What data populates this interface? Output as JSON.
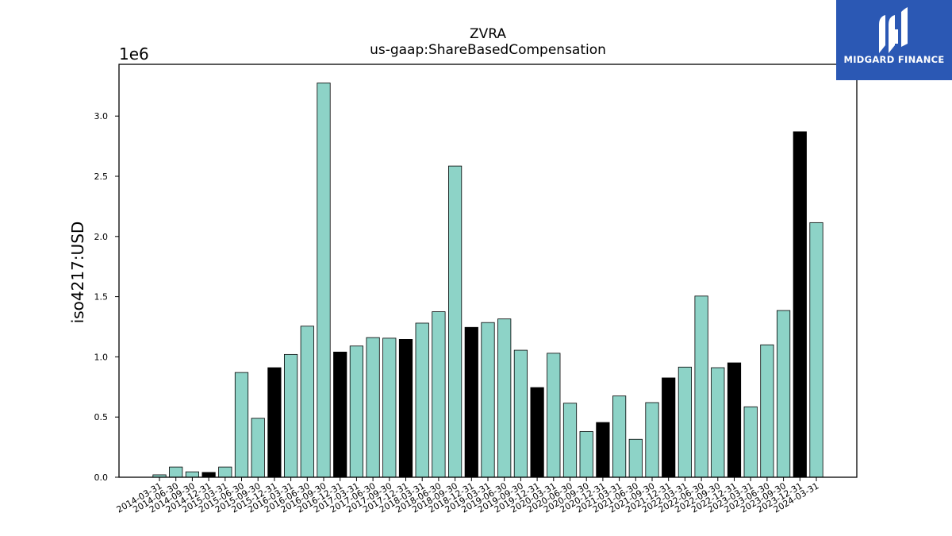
{
  "chart_data": {
    "type": "bar",
    "title": "ZVRA",
    "subtitle": "us-gaap:ShareBasedCompensation",
    "ylabel": "iso4217:USD",
    "xlabel": "",
    "y_offset_label": "1e6",
    "ylim": [
      0,
      3430000
    ],
    "yticks": [
      0.0,
      0.5,
      1.0,
      1.5,
      2.0,
      2.5,
      3.0
    ],
    "ytick_labels": [
      "0.0",
      "0.5",
      "1.0",
      "1.5",
      "2.0",
      "2.5",
      "3.0"
    ],
    "grid": false,
    "colors": {
      "default": "#8dd3c7",
      "highlight": "#000000",
      "edge": "#000000"
    },
    "categories": [
      "2014-03-31",
      "2014-06-30",
      "2014-09-30",
      "2014-12-31",
      "2015-03-31",
      "2015-06-30",
      "2015-09-30",
      "2015-12-31",
      "2016-03-31",
      "2016-06-30",
      "2016-09-30",
      "2016-12-31",
      "2017-03-31",
      "2017-06-30",
      "2017-09-30",
      "2017-12-31",
      "2018-03-31",
      "2018-06-30",
      "2018-09-30",
      "2018-12-31",
      "2019-03-31",
      "2019-06-30",
      "2019-09-30",
      "2019-12-31",
      "2020-03-31",
      "2020-06-30",
      "2020-09-30",
      "2020-12-31",
      "2021-03-31",
      "2021-06-30",
      "2021-09-30",
      "2021-12-31",
      "2022-03-31",
      "2022-06-30",
      "2022-09-30",
      "2022-12-31",
      "2023-03-31",
      "2023-06-30",
      "2023-09-30",
      "2023-12-31",
      "2024-03-31"
    ],
    "values": [
      20000,
      85000,
      45000,
      40000,
      85000,
      870000,
      490000,
      910000,
      1020000,
      1255000,
      3275000,
      1040000,
      1090000,
      1160000,
      1155000,
      1145000,
      1280000,
      1375000,
      2585000,
      1245000,
      1285000,
      1315000,
      1055000,
      745000,
      1030000,
      615000,
      380000,
      455000,
      675000,
      315000,
      620000,
      825000,
      915000,
      1505000,
      910000,
      950000,
      585000,
      1100000,
      1385000,
      2870000,
      2115000
    ],
    "highlight": [
      false,
      false,
      false,
      true,
      false,
      false,
      false,
      true,
      false,
      false,
      false,
      true,
      false,
      false,
      false,
      true,
      false,
      false,
      false,
      true,
      false,
      false,
      false,
      true,
      false,
      false,
      false,
      true,
      false,
      false,
      false,
      true,
      false,
      false,
      false,
      true,
      false,
      false,
      false,
      true,
      false
    ]
  },
  "logo": {
    "text": "MIDGARD FINANCE",
    "color": "#2b58b4"
  }
}
